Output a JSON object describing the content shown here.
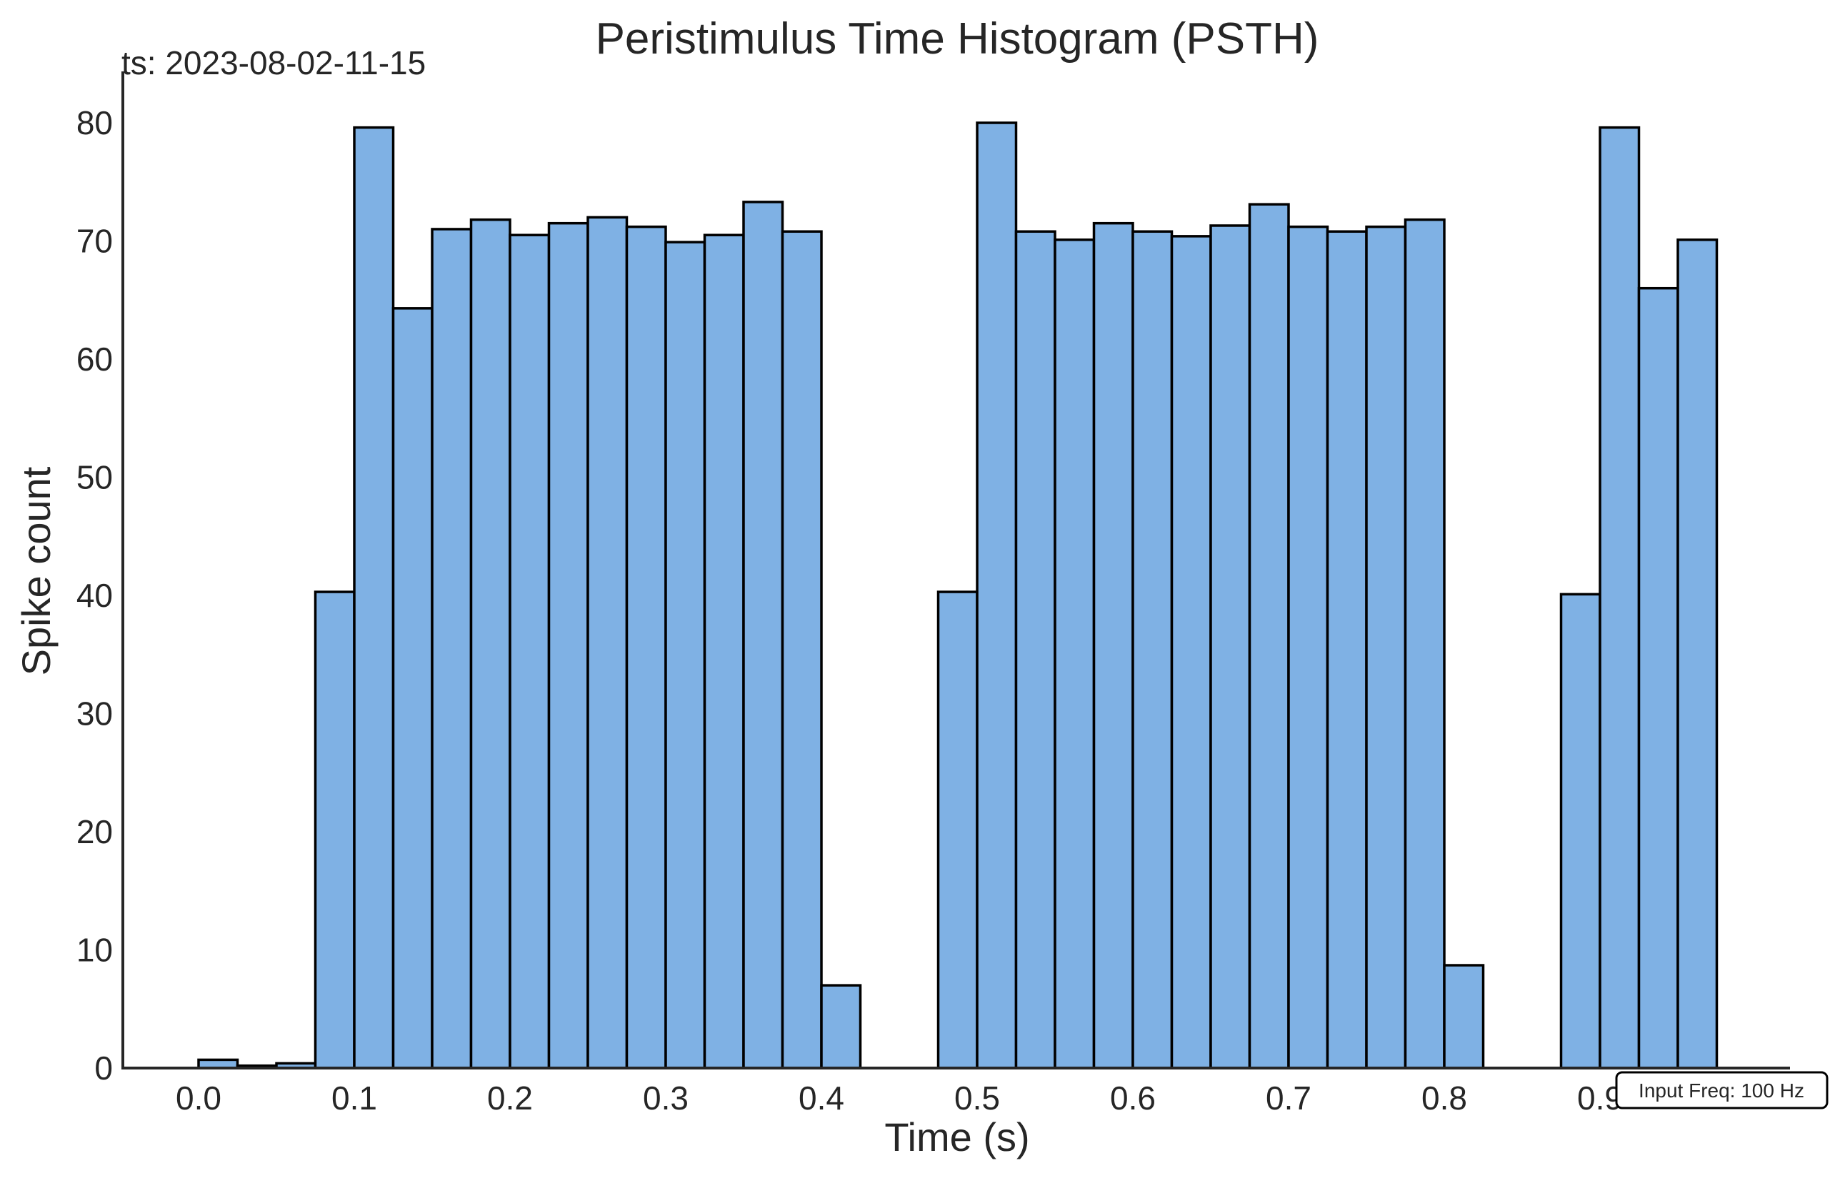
{
  "chart_data": {
    "type": "bar",
    "title": "Peristimulus Time Histogram (PSTH)",
    "xlabel": "Time (s)",
    "ylabel": "Spike count",
    "timestamp": "ts: 2023-08-02-11-15",
    "annotation": "Input Freq: 100 Hz",
    "bin_width": 0.025,
    "xlim": [
      -0.05,
      1.025
    ],
    "ylim": [
      0,
      84
    ],
    "xticks": [
      0.0,
      0.1,
      0.2,
      0.3,
      0.4,
      0.5,
      0.6,
      0.7,
      0.8,
      0.9
    ],
    "xtick_labels": [
      "0.0",
      "0.1",
      "0.2",
      "0.3",
      "0.4",
      "0.5",
      "0.6",
      "0.7",
      "0.8",
      "0.9"
    ],
    "yticks": [
      0,
      10,
      20,
      30,
      40,
      50,
      60,
      70,
      80
    ],
    "ytick_labels": [
      "0",
      "10",
      "20",
      "30",
      "40",
      "50",
      "60",
      "70",
      "80"
    ],
    "bar_color": "#7fb1e4",
    "edge_color": "#000000",
    "bins": [
      0.0,
      0.025,
      0.05,
      0.075,
      0.1,
      0.125,
      0.15,
      0.175,
      0.2,
      0.225,
      0.25,
      0.275,
      0.3,
      0.325,
      0.35,
      0.375,
      0.4,
      0.425,
      0.45,
      0.475,
      0.5,
      0.525,
      0.55,
      0.575,
      0.6,
      0.625,
      0.65,
      0.675,
      0.7,
      0.725,
      0.75,
      0.775,
      0.8,
      0.825,
      0.85,
      0.875,
      0.9,
      0.925,
      0.95
    ],
    "values": [
      0.7,
      0.2,
      0.4,
      40.3,
      79.6,
      64.3,
      71.0,
      71.8,
      70.5,
      71.5,
      72.0,
      71.2,
      69.9,
      70.5,
      73.3,
      70.8,
      7.0,
      0,
      0,
      40.3,
      80.0,
      70.8,
      70.1,
      71.5,
      70.8,
      70.4,
      71.3,
      73.1,
      71.2,
      70.8,
      71.2,
      71.8,
      8.7,
      0,
      0,
      40.1,
      79.6,
      66.0,
      70.1
    ],
    "grid": false
  }
}
